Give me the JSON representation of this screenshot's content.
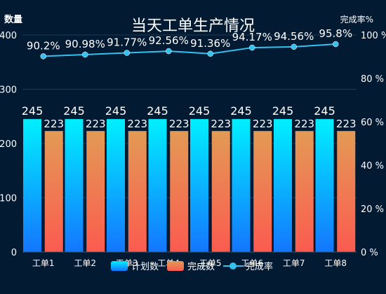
{
  "chart_data": {
    "type": "bar",
    "title": "当天工单生产情况",
    "categories": [
      "工单1",
      "工单2",
      "工单3",
      "工单4",
      "工单5",
      "工单6",
      "工单7",
      "工单8"
    ],
    "series": [
      {
        "name": "计划数",
        "type": "bar",
        "axis": "left",
        "values": [
          245,
          245,
          245,
          245,
          245,
          245,
          245,
          245
        ]
      },
      {
        "name": "完成数",
        "type": "bar",
        "axis": "left",
        "values": [
          223,
          223,
          223,
          223,
          223,
          223,
          223,
          223
        ]
      },
      {
        "name": "完成率",
        "type": "line",
        "axis": "right",
        "values": [
          90.2,
          90.98,
          91.77,
          92.56,
          91.36,
          94.17,
          94.56,
          95.8
        ],
        "unit": "%"
      }
    ],
    "ylabel": "数量",
    "ylabel_right": "完成率%",
    "ylim": [
      0,
      400
    ],
    "yticks": [
      0,
      100,
      200,
      300,
      400
    ],
    "ylim_right": [
      0,
      100
    ],
    "yticks_right_labels": [
      "0 %",
      "20 %",
      "40 %",
      "60 %",
      "80 %",
      "100 %"
    ],
    "grid": "horizontal",
    "legend_position": "bottom-center",
    "colors": {
      "background": "#031a33",
      "plan_top": "#00f0ff",
      "plan_bottom": "#1476ff",
      "done_top": "#e39a55",
      "done_bottom": "#fb5b4f",
      "line": "#35c1ef",
      "text": "#ffffff",
      "grid": "#1f3a55"
    }
  }
}
